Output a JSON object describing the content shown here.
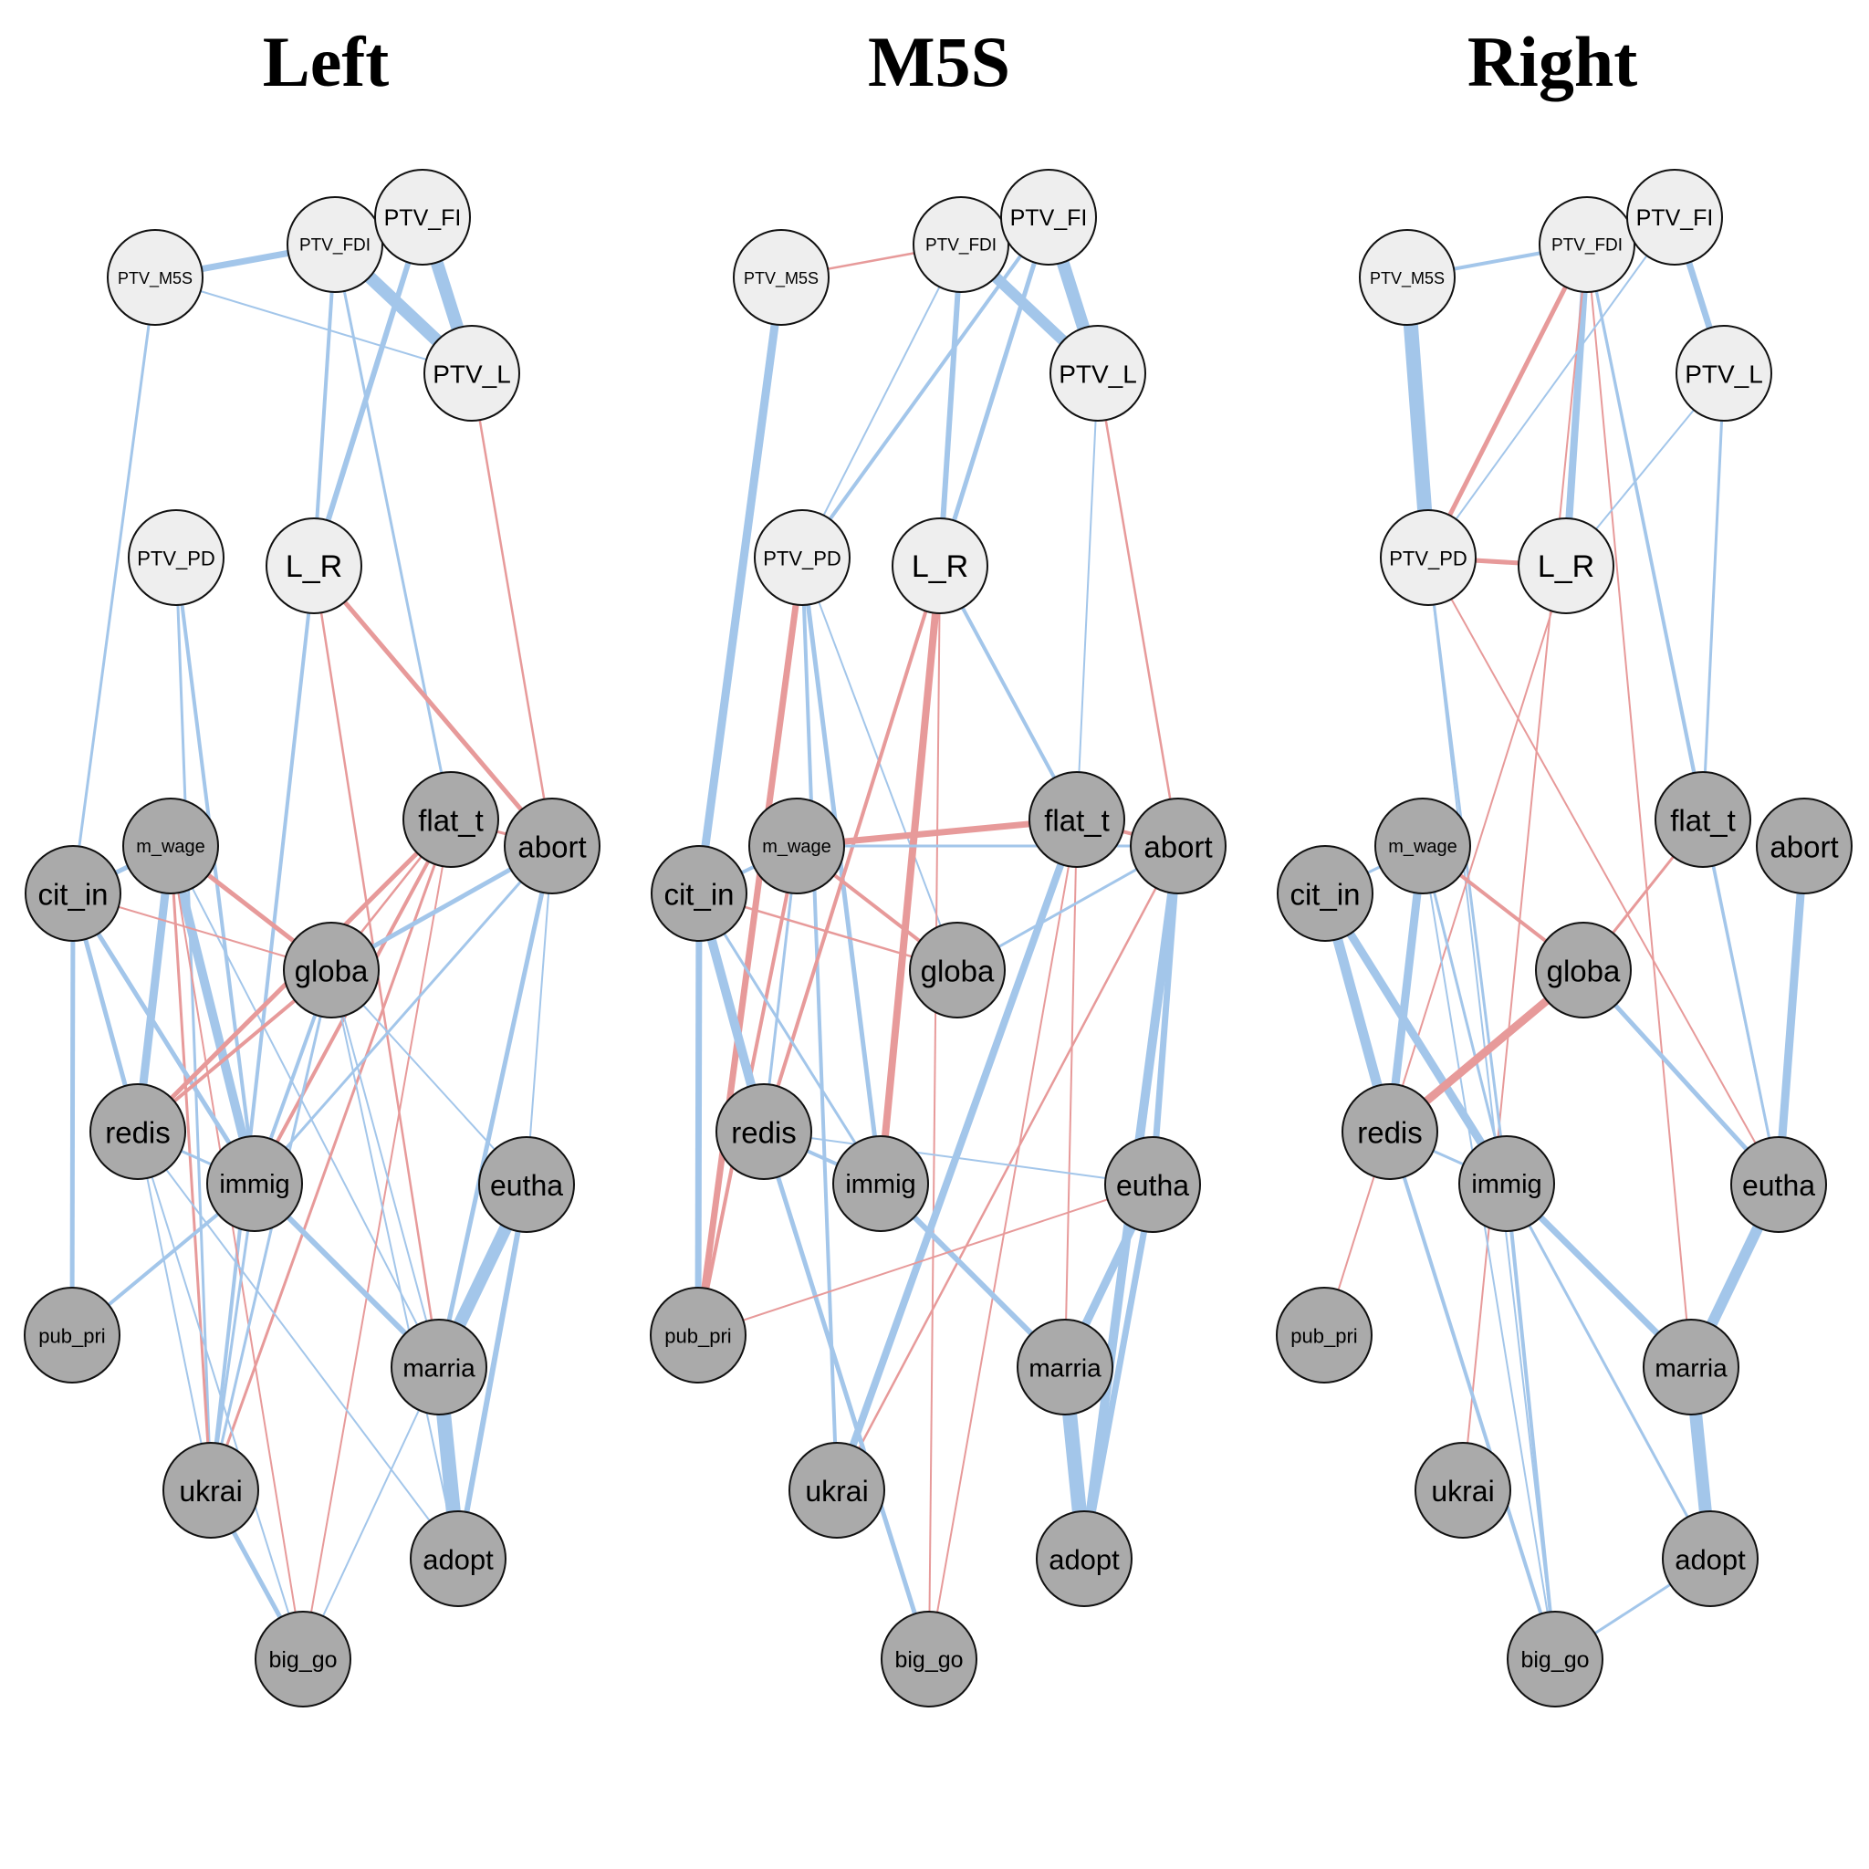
{
  "colors": {
    "positive_edge": "#a3c6ea",
    "negative_edge": "#e79a9a",
    "ptv_node_fill": "#eeeeee",
    "issue_node_fill": "#aaaaaa",
    "node_stroke": "#111111"
  },
  "nodes": [
    {
      "id": "PTV_M5S",
      "label": "PTV_M5S",
      "group": "ptv"
    },
    {
      "id": "PTV_FDI",
      "label": "PTV_FDI",
      "group": "ptv"
    },
    {
      "id": "PTV_FI",
      "label": "PTV_FI",
      "group": "ptv"
    },
    {
      "id": "PTV_L",
      "label": "PTV_L",
      "group": "ptv"
    },
    {
      "id": "PTV_PD",
      "label": "PTV_PD",
      "group": "ptv"
    },
    {
      "id": "L_R",
      "label": "L_R",
      "group": "ptv"
    },
    {
      "id": "m_wage",
      "label": "m_wage",
      "group": "issue"
    },
    {
      "id": "cit_in",
      "label": "cit_in",
      "group": "issue"
    },
    {
      "id": "flat_t",
      "label": "flat_t",
      "group": "issue"
    },
    {
      "id": "abort",
      "label": "abort",
      "group": "issue"
    },
    {
      "id": "globa",
      "label": "globa",
      "group": "issue"
    },
    {
      "id": "redis",
      "label": "redis",
      "group": "issue"
    },
    {
      "id": "immig",
      "label": "immig",
      "group": "issue"
    },
    {
      "id": "eutha",
      "label": "eutha",
      "group": "issue"
    },
    {
      "id": "pub_pri",
      "label": "pub_pri",
      "group": "issue"
    },
    {
      "id": "marria",
      "label": "marria",
      "group": "issue"
    },
    {
      "id": "ukrai",
      "label": "ukrai",
      "group": "issue"
    },
    {
      "id": "adopt",
      "label": "adopt",
      "group": "issue"
    },
    {
      "id": "big_go",
      "label": "big_go",
      "group": "issue"
    }
  ],
  "panels": [
    {
      "title": "Left",
      "edges": [
        [
          "PTV_FDI",
          "PTV_L",
          "+",
          14
        ],
        [
          "PTV_FI",
          "PTV_L",
          "+",
          14
        ],
        [
          "PTV_M5S",
          "PTV_FDI",
          "+",
          7
        ],
        [
          "PTV_M5S",
          "PTV_L",
          "+",
          2
        ],
        [
          "PTV_FI",
          "L_R",
          "+",
          6
        ],
        [
          "PTV_FDI",
          "L_R",
          "+",
          4
        ],
        [
          "PTV_FDI",
          "flat_t",
          "+",
          3
        ],
        [
          "PTV_M5S",
          "cit_in",
          "+",
          3
        ],
        [
          "PTV_L",
          "abort",
          "-",
          2.5
        ],
        [
          "L_R",
          "abort",
          "-",
          5
        ],
        [
          "L_R",
          "marria",
          "-",
          2.5
        ],
        [
          "L_R",
          "ukrai",
          "+",
          4
        ],
        [
          "PTV_PD",
          "immig",
          "+",
          4
        ],
        [
          "PTV_PD",
          "ukrai",
          "+",
          3
        ],
        [
          "m_wage",
          "cit_in",
          "+",
          5
        ],
        [
          "m_wage",
          "redis",
          "+",
          9
        ],
        [
          "m_wage",
          "immig",
          "+",
          10
        ],
        [
          "m_wage",
          "globa",
          "-",
          5
        ],
        [
          "m_wage",
          "ukrai",
          "-",
          3
        ],
        [
          "m_wage",
          "big_go",
          "-",
          2
        ],
        [
          "m_wage",
          "marria",
          "+",
          2
        ],
        [
          "cit_in",
          "globa",
          "-",
          2
        ],
        [
          "cit_in",
          "redis",
          "+",
          5
        ],
        [
          "cit_in",
          "immig",
          "+",
          5
        ],
        [
          "cit_in",
          "pub_pri",
          "+",
          5
        ],
        [
          "flat_t",
          "globa",
          "-",
          2.5
        ],
        [
          "flat_t",
          "redis",
          "-",
          5
        ],
        [
          "flat_t",
          "immig",
          "-",
          4
        ],
        [
          "flat_t",
          "ukrai",
          "-",
          3
        ],
        [
          "flat_t",
          "big_go",
          "-",
          2
        ],
        [
          "flat_t",
          "abort",
          "-",
          3
        ],
        [
          "abort",
          "globa",
          "+",
          5
        ],
        [
          "abort",
          "immig",
          "+",
          3
        ],
        [
          "abort",
          "marria",
          "+",
          5
        ],
        [
          "abort",
          "eutha",
          "+",
          2
        ],
        [
          "globa",
          "redis",
          "-",
          4
        ],
        [
          "globa",
          "immig",
          "+",
          4
        ],
        [
          "globa",
          "eutha",
          "+",
          2
        ],
        [
          "globa",
          "ukrai",
          "+",
          3
        ],
        [
          "globa",
          "marria",
          "+",
          2
        ],
        [
          "globa",
          "adopt",
          "+",
          2
        ],
        [
          "redis",
          "immig",
          "+",
          3
        ],
        [
          "redis",
          "ukrai",
          "+",
          2
        ],
        [
          "redis",
          "big_go",
          "+",
          2
        ],
        [
          "redis",
          "adopt",
          "+",
          2
        ],
        [
          "immig",
          "marria",
          "+",
          6
        ],
        [
          "immig",
          "pub_pri",
          "+",
          4
        ],
        [
          "immig",
          "ukrai",
          "+",
          3
        ],
        [
          "eutha",
          "marria",
          "+",
          14
        ],
        [
          "eutha",
          "adopt",
          "+",
          6
        ],
        [
          "marria",
          "adopt",
          "+",
          16
        ],
        [
          "marria",
          "big_go",
          "+",
          2
        ],
        [
          "ukrai",
          "big_go",
          "+",
          5
        ]
      ]
    },
    {
      "title": "M5S",
      "edges": [
        [
          "PTV_FDI",
          "PTV_L",
          "+",
          12
        ],
        [
          "PTV_FI",
          "PTV_L",
          "+",
          14
        ],
        [
          "PTV_M5S",
          "PTV_FDI",
          "-",
          2.5
        ],
        [
          "PTV_FI",
          "L_R",
          "+",
          5
        ],
        [
          "PTV_FDI",
          "L_R",
          "+",
          6
        ],
        [
          "PTV_FI",
          "PTV_PD",
          "+",
          4
        ],
        [
          "PTV_FDI",
          "PTV_PD",
          "+",
          2
        ],
        [
          "PTV_L",
          "flat_t",
          "+",
          2
        ],
        [
          "PTV_L",
          "abort",
          "-",
          2.5
        ],
        [
          "PTV_M5S",
          "cit_in",
          "+",
          9
        ],
        [
          "PTV_PD",
          "pub_pri",
          "-",
          7
        ],
        [
          "PTV_PD",
          "immig",
          "+",
          5
        ],
        [
          "PTV_PD",
          "ukrai",
          "+",
          4
        ],
        [
          "PTV_PD",
          "globa",
          "+",
          2
        ],
        [
          "L_R",
          "redis",
          "-",
          4
        ],
        [
          "L_R",
          "immig",
          "-",
          8
        ],
        [
          "L_R",
          "flat_t",
          "+",
          4
        ],
        [
          "L_R",
          "big_go",
          "-",
          2
        ],
        [
          "m_wage",
          "flat_t",
          "-",
          7
        ],
        [
          "m_wage",
          "abort",
          "+",
          3
        ],
        [
          "m_wage",
          "redis",
          "+",
          3
        ],
        [
          "m_wage",
          "globa",
          "-",
          4
        ],
        [
          "m_wage",
          "pub_pri",
          "-",
          4
        ],
        [
          "m_wage",
          "cit_in",
          "+",
          4
        ],
        [
          "cit_in",
          "redis",
          "+",
          10
        ],
        [
          "cit_in",
          "pub_pri",
          "+",
          7
        ],
        [
          "cit_in",
          "globa",
          "-",
          2.5
        ],
        [
          "cit_in",
          "immig",
          "+",
          3
        ],
        [
          "flat_t",
          "abort",
          "-",
          4
        ],
        [
          "flat_t",
          "ukrai",
          "+",
          8
        ],
        [
          "flat_t",
          "marria",
          "-",
          2
        ],
        [
          "flat_t",
          "big_go",
          "-",
          2
        ],
        [
          "abort",
          "globa",
          "+",
          3
        ],
        [
          "abort",
          "eutha",
          "+",
          7
        ],
        [
          "abort",
          "adopt",
          "+",
          10
        ],
        [
          "abort",
          "ukrai",
          "-",
          2.5
        ],
        [
          "redis",
          "immig",
          "+",
          4
        ],
        [
          "redis",
          "eutha",
          "+",
          2
        ],
        [
          "redis",
          "big_go",
          "+",
          5
        ],
        [
          "immig",
          "marria",
          "+",
          6
        ],
        [
          "eutha",
          "pub_pri",
          "-",
          2
        ],
        [
          "eutha",
          "marria",
          "+",
          9
        ],
        [
          "eutha",
          "adopt",
          "+",
          7
        ],
        [
          "marria",
          "adopt",
          "+",
          16
        ]
      ]
    },
    {
      "title": "Right",
      "edges": [
        [
          "PTV_M5S",
          "PTV_FDI",
          "+",
          4
        ],
        [
          "PTV_FI",
          "PTV_L",
          "+",
          7
        ],
        [
          "PTV_M5S",
          "PTV_PD",
          "+",
          16
        ],
        [
          "PTV_FDI",
          "PTV_PD",
          "-",
          5
        ],
        [
          "PTV_FDI",
          "L_R",
          "+",
          8
        ],
        [
          "PTV_FDI",
          "flat_t",
          "+",
          3
        ],
        [
          "PTV_FDI",
          "eutha",
          "+",
          3
        ],
        [
          "PTV_FDI",
          "marria",
          "-",
          2
        ],
        [
          "PTV_FDI",
          "ukrai",
          "-",
          2
        ],
        [
          "PTV_FI",
          "PTV_PD",
          "+",
          2
        ],
        [
          "PTV_PD",
          "L_R",
          "-",
          5
        ],
        [
          "PTV_L",
          "L_R",
          "+",
          2
        ],
        [
          "PTV_L",
          "flat_t",
          "+",
          3
        ],
        [
          "PTV_PD",
          "immig",
          "+",
          3
        ],
        [
          "PTV_PD",
          "big_go",
          "+",
          2
        ],
        [
          "PTV_PD",
          "eutha",
          "-",
          2
        ],
        [
          "L_R",
          "pub_pri",
          "-",
          2
        ],
        [
          "m_wage",
          "redis",
          "+",
          9
        ],
        [
          "m_wage",
          "globa",
          "-",
          4
        ],
        [
          "m_wage",
          "cit_in",
          "+",
          3
        ],
        [
          "m_wage",
          "immig",
          "+",
          3
        ],
        [
          "m_wage",
          "big_go",
          "+",
          2
        ],
        [
          "cit_in",
          "redis",
          "+",
          11
        ],
        [
          "cit_in",
          "immig",
          "+",
          9
        ],
        [
          "flat_t",
          "globa",
          "-",
          3
        ],
        [
          "flat_t",
          "eutha",
          "+",
          2
        ],
        [
          "globa",
          "redis",
          "-",
          9
        ],
        [
          "globa",
          "eutha",
          "+",
          5
        ],
        [
          "abort",
          "eutha",
          "+",
          9
        ],
        [
          "redis",
          "immig",
          "+",
          3
        ],
        [
          "redis",
          "big_go",
          "+",
          4
        ],
        [
          "immig",
          "marria",
          "+",
          7
        ],
        [
          "immig",
          "adopt",
          "+",
          3
        ],
        [
          "immig",
          "big_go",
          "+",
          4
        ],
        [
          "eutha",
          "marria",
          "+",
          12
        ],
        [
          "marria",
          "adopt",
          "+",
          14
        ],
        [
          "adopt",
          "big_go",
          "+",
          3
        ]
      ]
    }
  ]
}
